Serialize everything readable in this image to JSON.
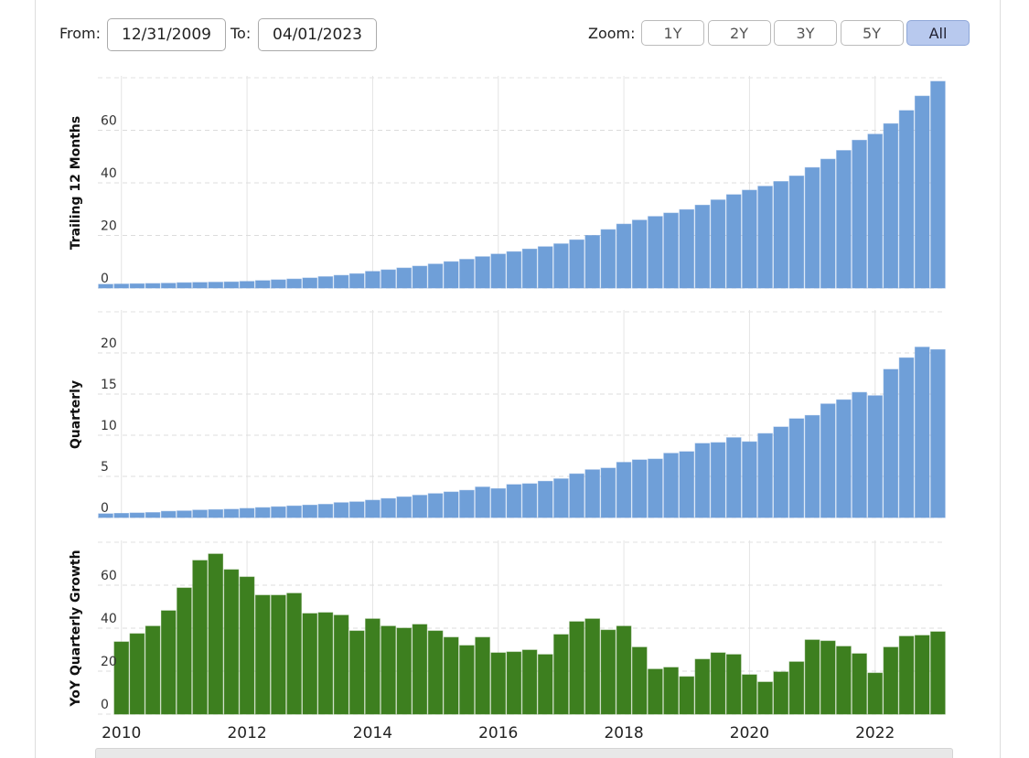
{
  "controls": {
    "from_label": "From:",
    "from_value": "12/31/2009",
    "to_label": "To:",
    "to_value": "04/01/2023",
    "zoom_label": "Zoom:",
    "zoom_buttons": [
      "1Y",
      "2Y",
      "3Y",
      "5Y",
      "All"
    ],
    "active_button": "All"
  },
  "chart_data": [
    {
      "type": "bar",
      "y_label": "Trailing 12 Months",
      "color": "#6f9fd8",
      "ylim": [
        0,
        80
      ],
      "yticks": [
        0,
        20,
        40,
        60
      ],
      "grid": true,
      "values": [
        1.4,
        1.5,
        1.6,
        1.7,
        1.8,
        2.0,
        2.1,
        2.2,
        2.3,
        2.5,
        2.8,
        3.1,
        3.4,
        3.8,
        4.3,
        4.8,
        5.4,
        6.3,
        6.9,
        7.6,
        8.3,
        9.1,
        10.0,
        10.9,
        11.9,
        12.9,
        13.8,
        14.8,
        15.7,
        16.8,
        18.3,
        20.0,
        22.2,
        24.3,
        25.8,
        27.2,
        28.5,
        29.8,
        31.5,
        33.5,
        35.5,
        37.2,
        38.7,
        40.5,
        42.6,
        45.8,
        49.0,
        52.3,
        56.2,
        58.5,
        62.5,
        67.5,
        73.0,
        78.6
      ]
    },
    {
      "type": "bar",
      "y_label": "Quarterly",
      "color": "#6f9fd8",
      "ylim": [
        0,
        25
      ],
      "yticks": [
        0,
        5,
        10,
        15,
        20
      ],
      "grid": true,
      "values": [
        0.45,
        0.5,
        0.55,
        0.6,
        0.75,
        0.8,
        0.9,
        0.95,
        1.0,
        1.1,
        1.2,
        1.3,
        1.4,
        1.5,
        1.6,
        1.8,
        1.9,
        2.1,
        2.3,
        2.5,
        2.7,
        2.9,
        3.1,
        3.3,
        3.7,
        3.5,
        4.0,
        4.1,
        4.4,
        4.7,
        5.3,
        5.8,
        6.0,
        6.7,
        7.0,
        7.1,
        7.8,
        8.0,
        9.0,
        9.1,
        9.7,
        9.2,
        10.2,
        11.0,
        12.0,
        12.4,
        13.8,
        14.3,
        15.2,
        14.8,
        18.0,
        19.4,
        20.7,
        20.4
      ]
    },
    {
      "type": "bar",
      "y_label": "YoY Quarterly Growth",
      "color": "#3d7f1f",
      "ylim": [
        0,
        80
      ],
      "yticks": [
        0,
        20,
        40,
        60
      ],
      "grid": true,
      "categories": [
        null,
        "2010",
        null,
        null,
        null,
        null,
        null,
        null,
        null,
        "2012",
        null,
        null,
        null,
        null,
        null,
        null,
        null,
        "2014",
        null,
        null,
        null,
        null,
        null,
        null,
        null,
        "2016",
        null,
        null,
        null,
        null,
        null,
        null,
        null,
        "2018",
        null,
        null,
        null,
        null,
        null,
        null,
        null,
        "2020",
        null,
        null,
        null,
        null,
        null,
        null,
        null,
        "2022",
        null,
        null,
        null,
        null
      ],
      "values": [
        null,
        33.6,
        37.4,
        40.9,
        48.1,
        58.7,
        71.5,
        74.5,
        67.2,
        63.8,
        55.3,
        55.3,
        56.2,
        46.8,
        47.2,
        46.0,
        38.7,
        44.3,
        40.9,
        40.0,
        41.7,
        38.7,
        35.7,
        31.9,
        35.7,
        28.5,
        28.9,
        29.8,
        27.7,
        37.0,
        43.0,
        44.3,
        39.1,
        40.9,
        31.1,
        20.9,
        21.7,
        17.4,
        25.5,
        28.5,
        27.7,
        18.3,
        14.9,
        19.6,
        24.3,
        34.5,
        34.0,
        31.5,
        28.1,
        19.1,
        31.1,
        36.2,
        36.6,
        38.3
      ]
    }
  ]
}
